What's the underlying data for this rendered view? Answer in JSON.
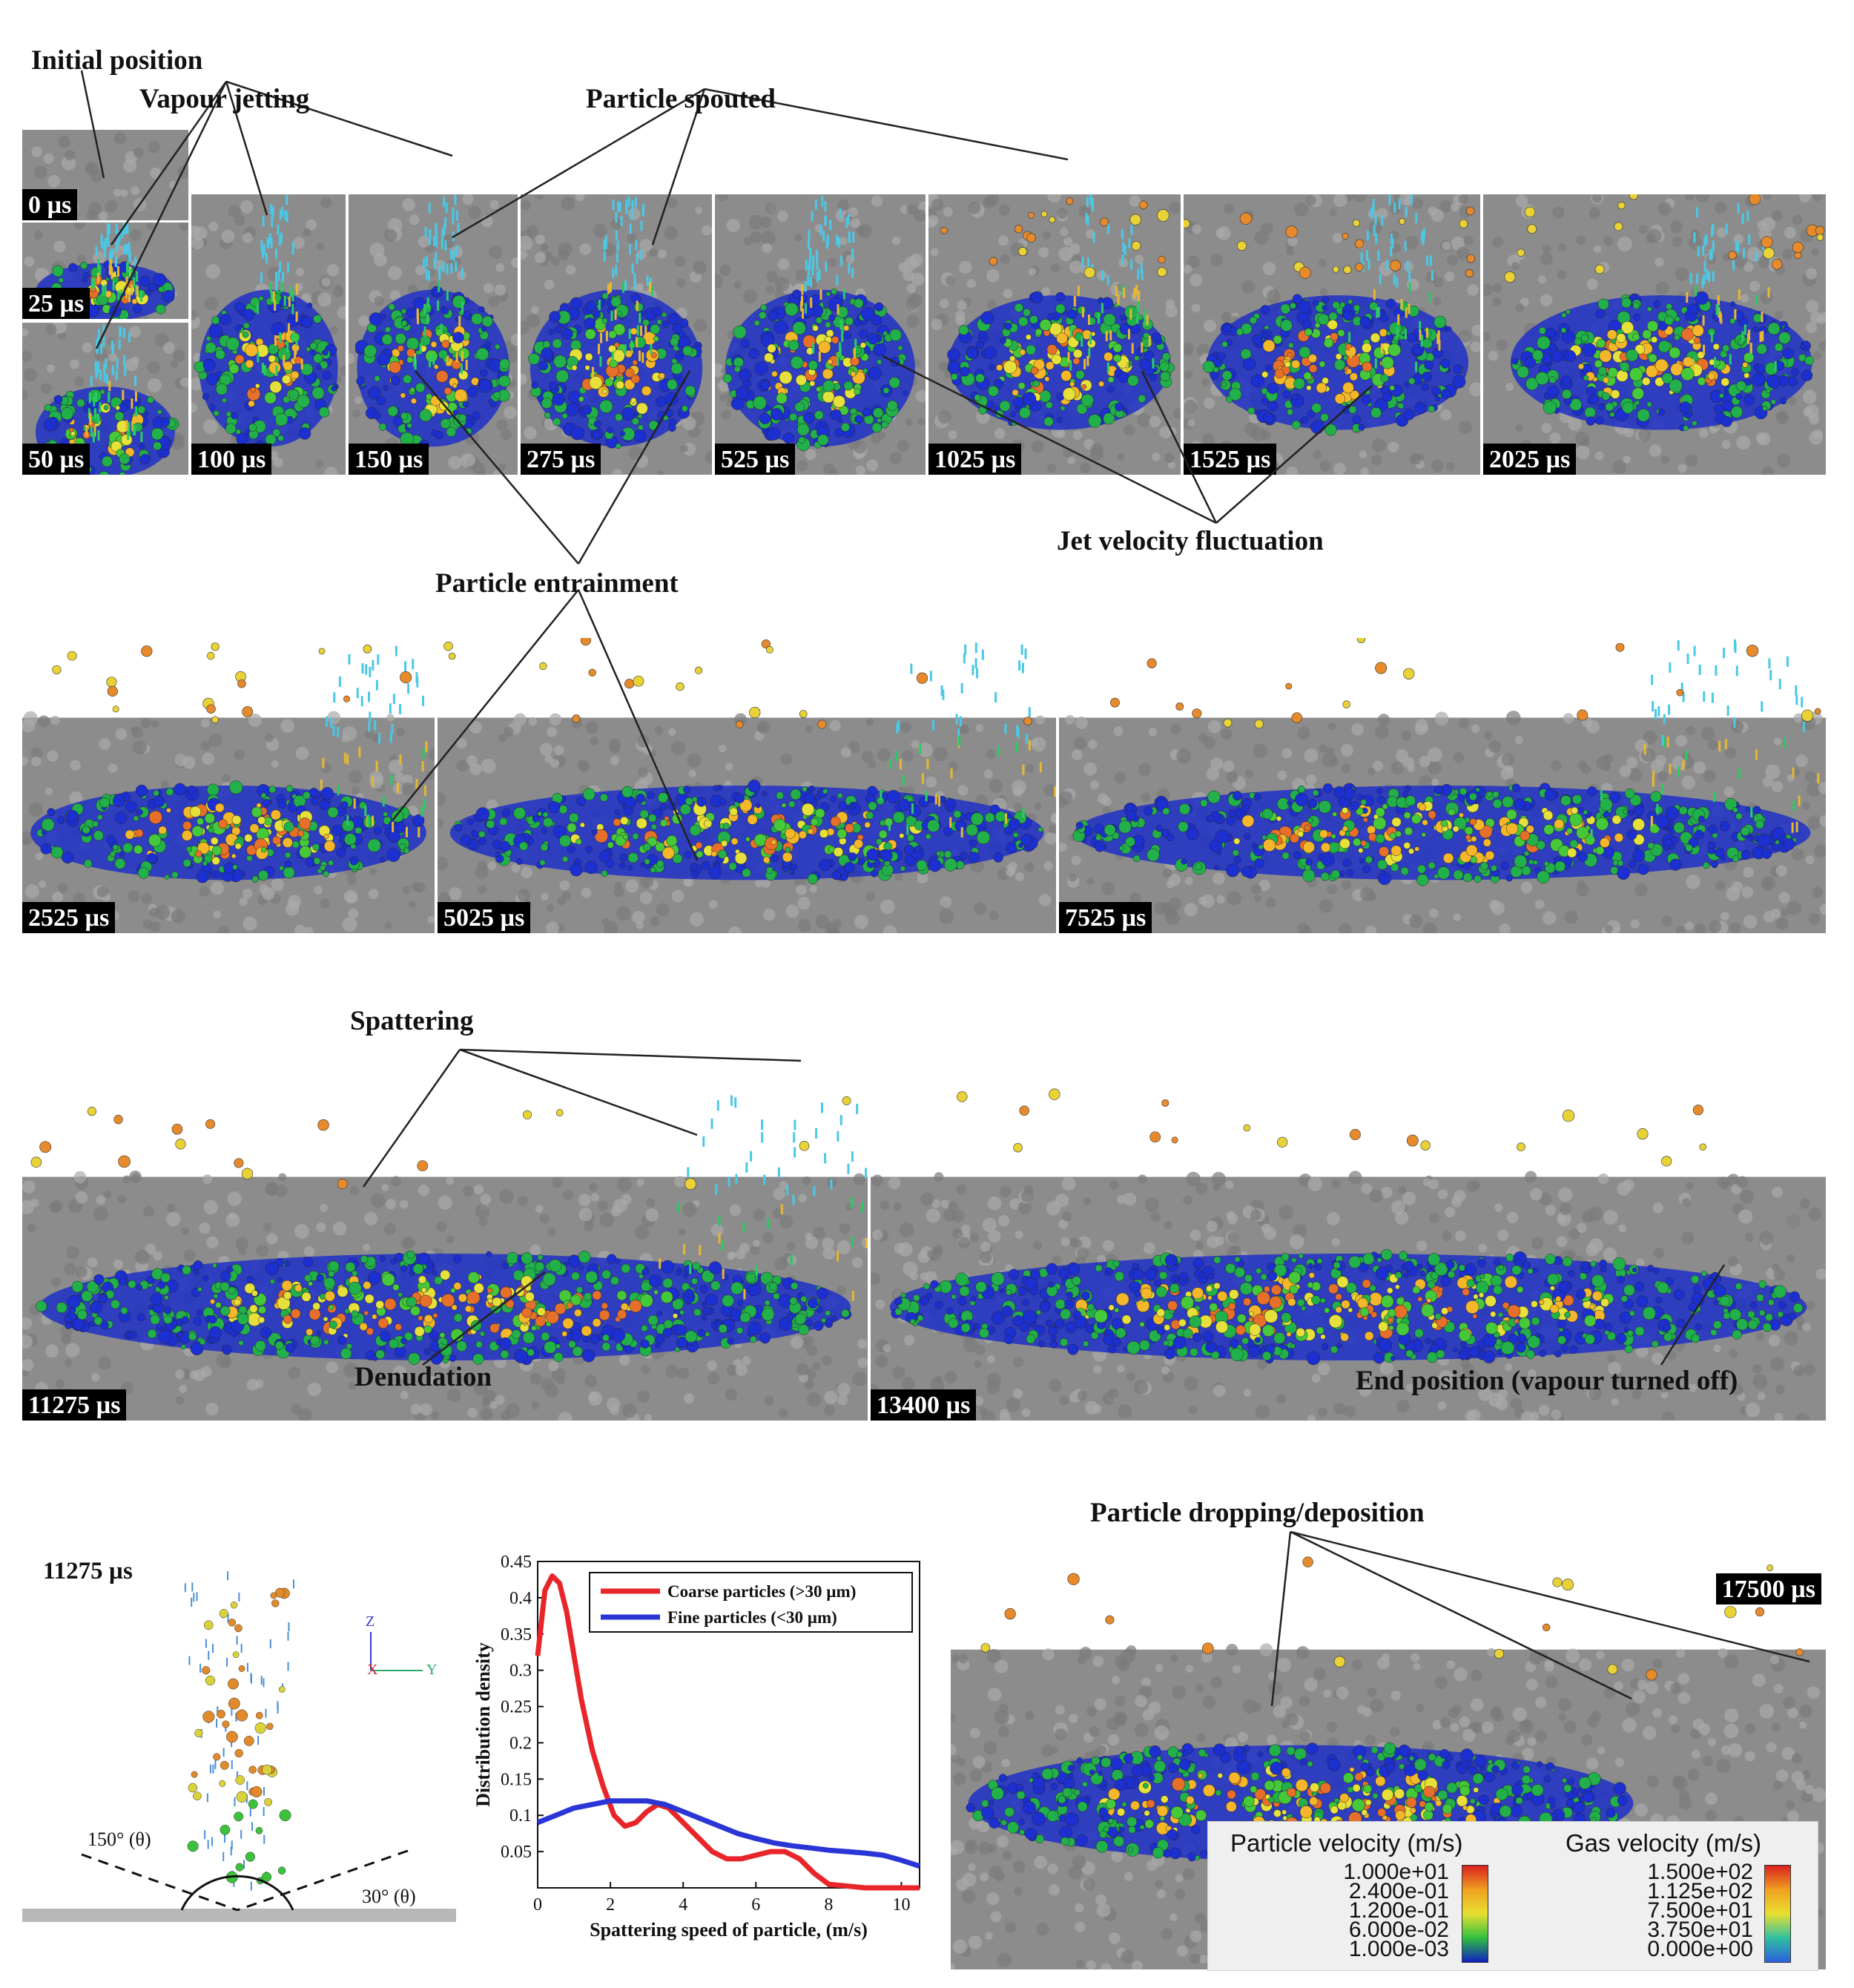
{
  "colors": {
    "bed_gray": "#8c8c8c",
    "pool_blue": "#1f2fc8",
    "coarse_series": "#e8262a",
    "fine_series": "#2a35d6",
    "label_bg": "#000000",
    "label_fg": "#ffffff"
  },
  "snapshots": [
    {
      "id": "t0",
      "time": "0 µs"
    },
    {
      "id": "t25",
      "time": "25 µs"
    },
    {
      "id": "t50",
      "time": "50 µs"
    },
    {
      "id": "t100",
      "time": "100 µs"
    },
    {
      "id": "t150",
      "time": "150 µs"
    },
    {
      "id": "t275",
      "time": "275 µs"
    },
    {
      "id": "t525",
      "time": "525 µs"
    },
    {
      "id": "t1025",
      "time": "1025 µs"
    },
    {
      "id": "t1525",
      "time": "1525 µs"
    },
    {
      "id": "t2025",
      "time": "2025 µs"
    },
    {
      "id": "t2525",
      "time": "2525 µs"
    },
    {
      "id": "t5025",
      "time": "5025 µs"
    },
    {
      "id": "t7525",
      "time": "7525 µs"
    },
    {
      "id": "t11275",
      "time": "11275 µs"
    },
    {
      "id": "t13400",
      "time": "13400 µs"
    },
    {
      "id": "t17500",
      "time": "17500 µs"
    }
  ],
  "annotations": {
    "initial_position": "Initial position",
    "vapour_jetting": "Vapour jetting",
    "particle_spouted": "Particle spouted",
    "particle_entrainment": "Particle entrainment",
    "jet_velocity_fluctuation": "Jet velocity fluctuation",
    "spattering": "Spattering",
    "denudation": "Denudation",
    "end_position": "End position (vapour turned off)",
    "particle_dropping": "Particle dropping/deposition"
  },
  "side_view": {
    "time": "11275 µs",
    "angle_left": "150° (θ)",
    "angle_right": "30° (θ)",
    "axis_z": "Z",
    "axis_x": "X",
    "axis_y": "Y"
  },
  "chart_data": {
    "type": "line",
    "xlabel": "Spattering speed of particle, (m/s)",
    "ylabel": "Distribution density",
    "xlim": [
      0,
      10.5
    ],
    "ylim": [
      0,
      0.45
    ],
    "xticks": [
      0,
      2,
      4,
      6,
      8,
      10
    ],
    "yticks": [
      0.05,
      0.1,
      0.15,
      0.2,
      0.25,
      0.3,
      0.35,
      0.4,
      0.45
    ],
    "legend_position": "top-right",
    "series": [
      {
        "name": "Coarse particles (>30 µm)",
        "color": "#e8262a",
        "x": [
          0,
          0.2,
          0.4,
          0.6,
          0.8,
          1.0,
          1.2,
          1.5,
          1.8,
          2.1,
          2.4,
          2.7,
          3.0,
          3.3,
          3.6,
          4.0,
          4.4,
          4.8,
          5.2,
          5.6,
          6.0,
          6.4,
          6.8,
          7.2,
          7.6,
          8.0,
          9.0,
          10.0,
          10.5
        ],
        "y": [
          0.32,
          0.41,
          0.43,
          0.42,
          0.38,
          0.32,
          0.26,
          0.19,
          0.14,
          0.1,
          0.085,
          0.09,
          0.105,
          0.115,
          0.11,
          0.09,
          0.07,
          0.05,
          0.04,
          0.04,
          0.045,
          0.05,
          0.05,
          0.04,
          0.02,
          0.005,
          0.0,
          0.0,
          0.0
        ]
      },
      {
        "name": "Fine particles (<30 µm)",
        "color": "#2a35d6",
        "x": [
          0,
          0.5,
          1.0,
          1.5,
          2.0,
          2.5,
          3.0,
          3.5,
          4.0,
          4.5,
          5.0,
          5.5,
          6.0,
          6.5,
          7.0,
          7.5,
          8.0,
          8.5,
          9.0,
          9.5,
          10.0,
          10.5
        ],
        "y": [
          0.09,
          0.1,
          0.11,
          0.115,
          0.12,
          0.12,
          0.12,
          0.115,
          0.105,
          0.095,
          0.085,
          0.075,
          0.068,
          0.062,
          0.058,
          0.055,
          0.052,
          0.05,
          0.048,
          0.045,
          0.038,
          0.03
        ]
      }
    ]
  },
  "legend": {
    "particle": {
      "title": "Particle velocity (m/s)",
      "ticks": [
        "1.000e+01",
        "2.400e-01",
        "1.200e-01",
        "6.000e-02",
        "1.000e-03"
      ]
    },
    "gas": {
      "title": "Gas velocity (m/s)",
      "ticks": [
        "1.500e+02",
        "1.125e+02",
        "7.500e+01",
        "3.750e+01",
        "0.000e+00"
      ]
    }
  }
}
